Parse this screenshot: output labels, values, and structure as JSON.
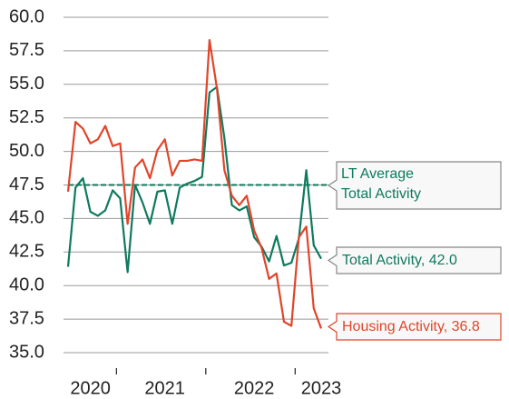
{
  "chart_data": {
    "type": "line",
    "categories": [
      null,
      null,
      null,
      "2020",
      null,
      null,
      null,
      null,
      null,
      null,
      null,
      null,
      null,
      "2021",
      null,
      null,
      null,
      null,
      null,
      null,
      null,
      null,
      null,
      null,
      null,
      "2022",
      null,
      null,
      null,
      null,
      null,
      null,
      null,
      null,
      "2023"
    ],
    "series": [
      {
        "label": "Housing Activity, 36.8",
        "color": "#e0452a",
        "values": [
          47.0,
          52.2,
          51.7,
          50.6,
          50.9,
          51.9,
          50.4,
          50.6,
          44.6,
          48.8,
          49.4,
          48.0,
          50.1,
          50.9,
          48.2,
          49.3,
          49.3,
          49.4,
          49.3,
          58.3,
          54.7,
          48.6,
          46.7,
          46.0,
          46.7,
          44.1,
          42.8,
          40.5,
          40.9,
          37.3,
          37.0,
          43.6,
          44.4,
          38.3,
          36.8
        ]
      },
      {
        "label": "Total Activity, 42.0",
        "color": "#0e7a5e",
        "values": [
          41.4,
          47.3,
          48.0,
          45.5,
          45.2,
          45.6,
          47.1,
          46.5,
          41.0,
          47.5,
          46.2,
          44.6,
          47.0,
          47.1,
          44.6,
          47.3,
          47.6,
          47.8,
          48.1,
          54.4,
          54.8,
          51.0,
          46.0,
          45.6,
          45.9,
          43.6,
          42.9,
          41.8,
          43.7,
          41.5,
          41.7,
          43.5,
          48.6,
          43.0,
          42.0
        ]
      }
    ],
    "reference_line": {
      "value": 47.5,
      "label": [
        "LT Average",
        "Total Activity"
      ],
      "color": "#0e7a5e"
    },
    "ylim": [
      35,
      60
    ],
    "yticks": [
      {
        "value": 35,
        "label": "35.0"
      },
      37.5,
      {
        "value": 40,
        "label": "40.0"
      },
      42.5,
      {
        "value": 45,
        "label": "45.0"
      },
      47.5,
      {
        "value": 50,
        "label": "50.0"
      },
      52.5,
      {
        "value": 55,
        "label": "55.0"
      },
      57.5,
      {
        "value": 60,
        "label": "60.0"
      }
    ],
    "grid": true
  }
}
